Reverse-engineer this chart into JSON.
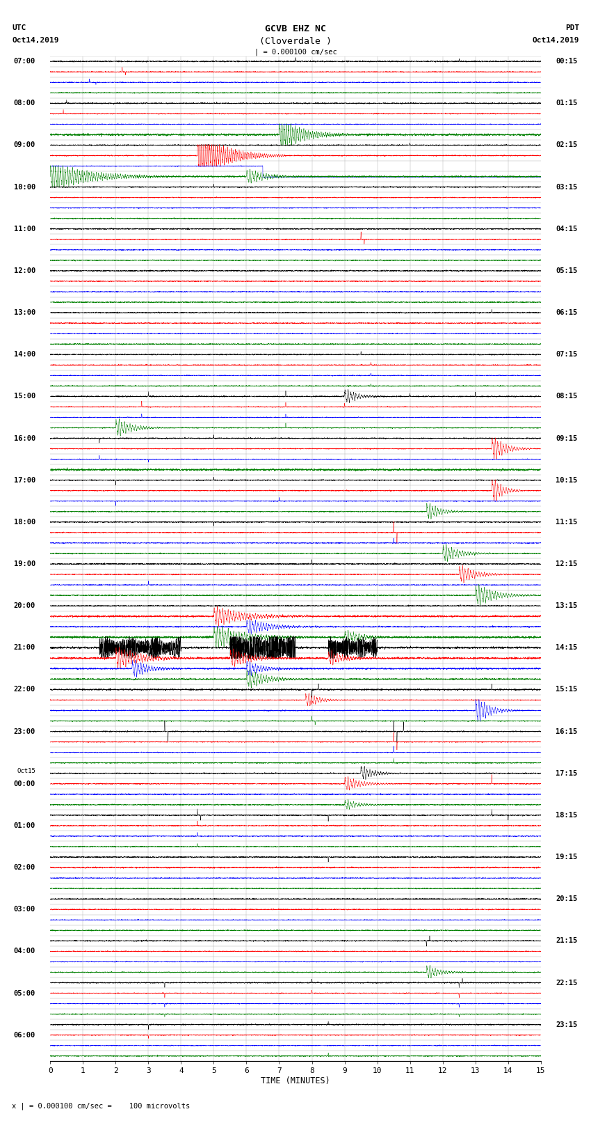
{
  "title_line1": "GCVB EHZ NC",
  "title_line2": "(Cloverdale )",
  "scale_text": "| = 0.000100 cm/sec",
  "footer_text": "x | = 0.000100 cm/sec =    100 microvolts",
  "utc_label": "UTC",
  "utc_date": "Oct14,2019",
  "pdt_label": "PDT",
  "pdt_date": "Oct14,2019",
  "xlabel": "TIME (MINUTES)",
  "xlim": [
    0,
    15
  ],
  "xticks": [
    0,
    1,
    2,
    3,
    4,
    5,
    6,
    7,
    8,
    9,
    10,
    11,
    12,
    13,
    14,
    15
  ],
  "left_times": [
    "07:00",
    "",
    "",
    "",
    "08:00",
    "",
    "",
    "",
    "09:00",
    "",
    "",
    "",
    "10:00",
    "",
    "",
    "",
    "11:00",
    "",
    "",
    "",
    "12:00",
    "",
    "",
    "",
    "13:00",
    "",
    "",
    "",
    "14:00",
    "",
    "",
    "",
    "15:00",
    "",
    "",
    "",
    "16:00",
    "",
    "",
    "",
    "17:00",
    "",
    "",
    "",
    "18:00",
    "",
    "",
    "",
    "19:00",
    "",
    "",
    "",
    "20:00",
    "",
    "",
    "",
    "21:00",
    "",
    "",
    "",
    "22:00",
    "",
    "",
    "",
    "23:00",
    "",
    "",
    "",
    "Oct15",
    "00:00",
    "",
    "",
    "",
    "01:00",
    "",
    "",
    "",
    "02:00",
    "",
    "",
    "",
    "03:00",
    "",
    "",
    "",
    "04:00",
    "",
    "",
    "",
    "05:00",
    "",
    "",
    "",
    "06:00",
    "",
    "",
    ""
  ],
  "right_times": [
    "00:15",
    "",
    "",
    "",
    "01:15",
    "",
    "",
    "",
    "02:15",
    "",
    "",
    "",
    "03:15",
    "",
    "",
    "",
    "04:15",
    "",
    "",
    "",
    "05:15",
    "",
    "",
    "",
    "06:15",
    "",
    "",
    "",
    "07:15",
    "",
    "",
    "",
    "08:15",
    "",
    "",
    "",
    "09:15",
    "",
    "",
    "",
    "10:15",
    "",
    "",
    "",
    "11:15",
    "",
    "",
    "",
    "12:15",
    "",
    "",
    "",
    "13:15",
    "",
    "",
    "",
    "14:15",
    "",
    "",
    "",
    "15:15",
    "",
    "",
    "",
    "16:15",
    "",
    "",
    "",
    "17:15",
    "",
    "",
    "",
    "18:15",
    "",
    "",
    "",
    "19:15",
    "",
    "",
    "",
    "20:15",
    "",
    "",
    "",
    "21:15",
    "",
    "",
    "",
    "22:15",
    "",
    "",
    "",
    "23:15",
    "",
    "",
    ""
  ],
  "n_rows": 96,
  "colors": [
    "black",
    "red",
    "blue",
    "green"
  ],
  "bg_color": "white",
  "line_width": 0.35,
  "grid_color": "#aaaaaa",
  "grid_lw": 0.3
}
